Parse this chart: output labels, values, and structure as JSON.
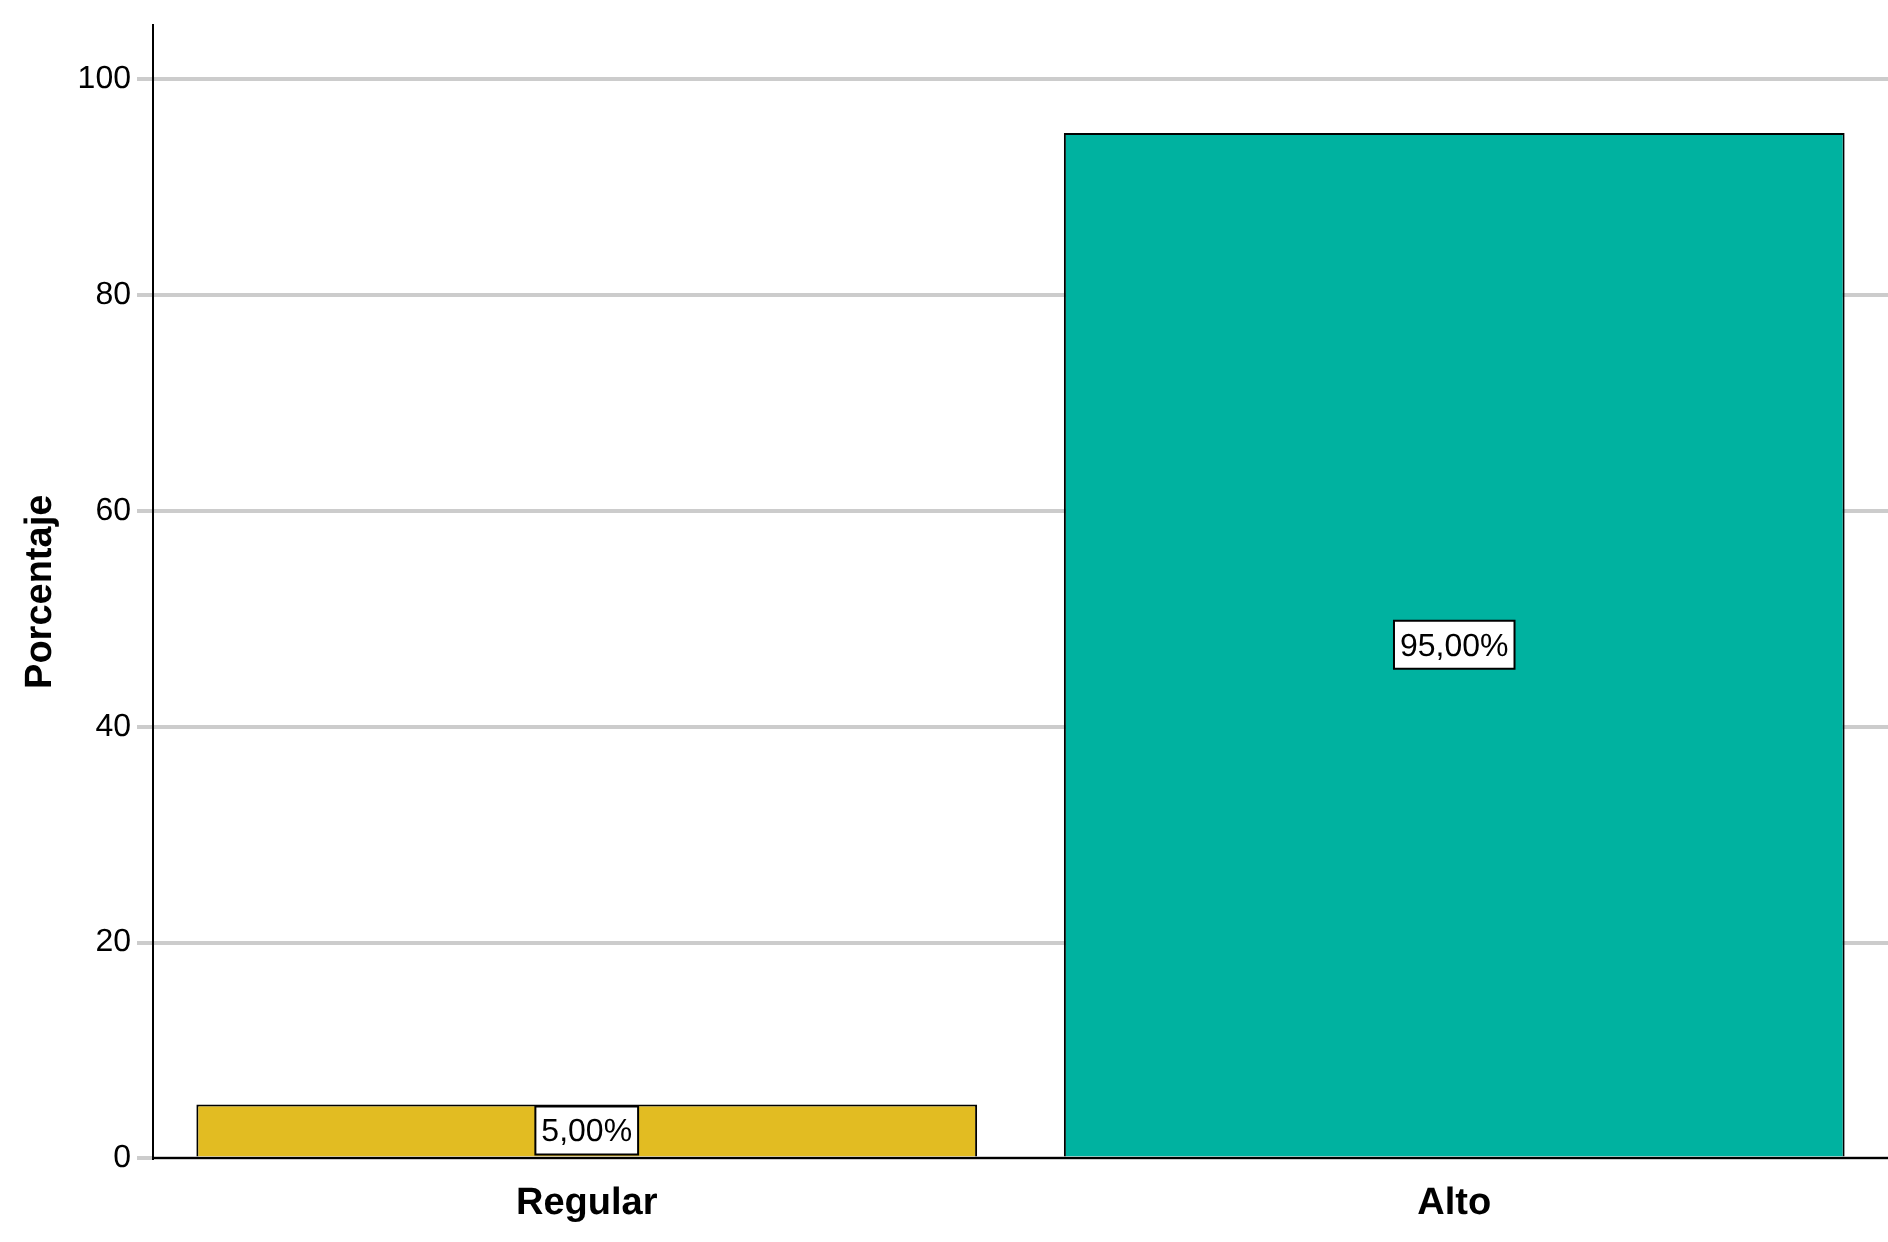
{
  "chart_data": {
    "type": "bar",
    "ylabel": "Porcentaje",
    "categories": [
      "Regular",
      "Alto"
    ],
    "values": [
      5,
      95
    ],
    "colors": [
      "#e2bc22",
      "#00b2a0"
    ],
    "value_labels": [
      "5,00%",
      "95,00%"
    ],
    "ylim": [
      0,
      105
    ],
    "yticks": [
      0,
      20,
      40,
      60,
      80,
      100
    ],
    "grid": "y",
    "legend": false
  }
}
